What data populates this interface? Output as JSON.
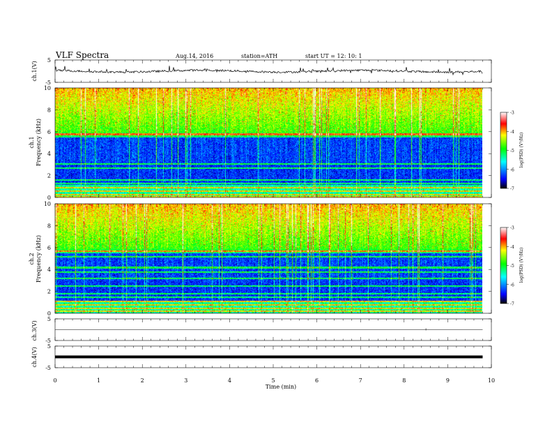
{
  "header": {
    "title": "VLF  Spectra",
    "date": "Aug.14,  2016",
    "station": "station=ATH",
    "start": "start  UT  =    12: 10: 1"
  },
  "colors": {
    "colormap": [
      "#000000",
      "#0000ff",
      "#00ffff",
      "#00ff00",
      "#ffff00",
      "#ff0000",
      "#ffffff"
    ]
  },
  "chart_data": [
    {
      "type": "line",
      "name": "ch1-waveform",
      "ylabel": "ch.1(V)",
      "yticks": [
        "5",
        "-5"
      ],
      "ylim": [
        -5,
        5
      ],
      "xlim": [
        0,
        10
      ]
    },
    {
      "type": "heatmap",
      "name": "ch1-spectrogram",
      "ylabel": "ch.1",
      "ylabel2": "Frequency  (kHz)",
      "yticks": [
        "0",
        "2",
        "4",
        "6",
        "8",
        "10"
      ],
      "ylim": [
        0,
        10
      ],
      "xlim": [
        0,
        10
      ],
      "data_end_min": 9.8,
      "colorbar": {
        "label": "log(PSD) (V²/Hz)",
        "ticks": [
          "-3",
          "-4",
          "-5",
          "-6",
          "-7"
        ],
        "range": [
          -7,
          -3
        ]
      }
    },
    {
      "type": "heatmap",
      "name": "ch2-spectrogram",
      "ylabel": "ch.2",
      "ylabel2": "Frequency  (kHz)",
      "yticks": [
        "0",
        "2",
        "4",
        "6",
        "8",
        "10"
      ],
      "ylim": [
        0,
        10
      ],
      "xlim": [
        0,
        10
      ],
      "data_end_min": 9.8,
      "colorbar": {
        "label": "log(PSD) (V²/Hz)",
        "ticks": [
          "-3",
          "-4",
          "-5",
          "-6",
          "-7"
        ],
        "range": [
          -7,
          -3
        ]
      }
    },
    {
      "type": "line",
      "name": "ch3-waveform",
      "ylabel": "ch.3(V)",
      "yticks": [
        "5",
        "-5"
      ],
      "ylim": [
        -5,
        5
      ],
      "xlim": [
        0,
        10
      ]
    },
    {
      "type": "line",
      "name": "ch4-waveform",
      "ylabel": "ch.4(V)",
      "yticks": [
        "5",
        "-5"
      ],
      "ylim": [
        -5,
        5
      ],
      "xlim": [
        0,
        10
      ]
    }
  ],
  "xaxis": {
    "label": "Time  (min)",
    "ticks": [
      "0",
      "1",
      "2",
      "3",
      "4",
      "5",
      "6",
      "7",
      "8",
      "9",
      "10"
    ]
  }
}
